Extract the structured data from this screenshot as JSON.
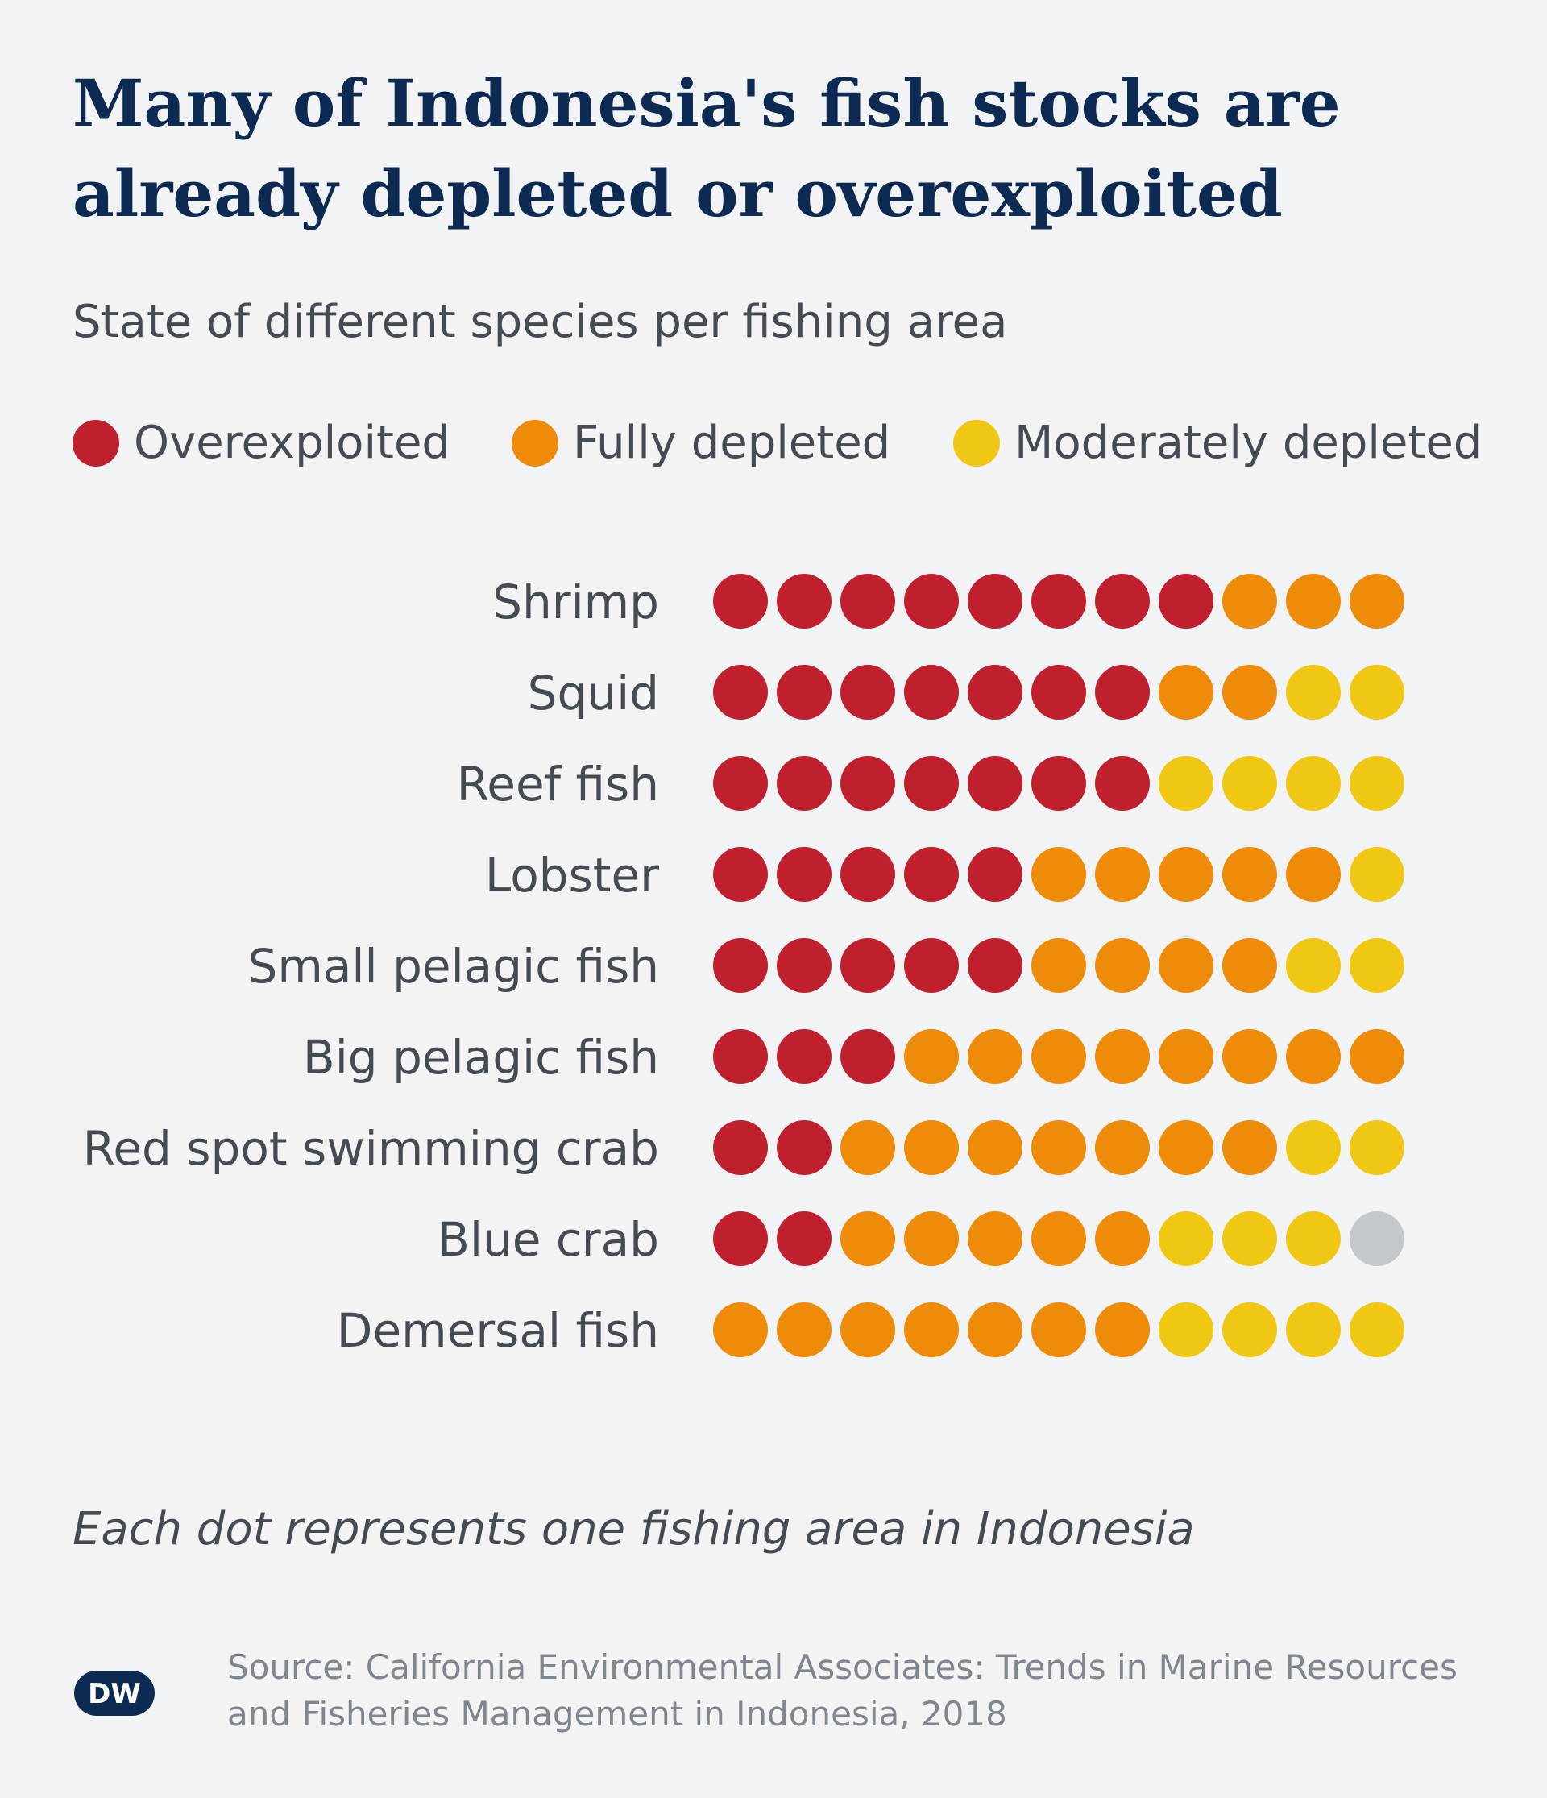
{
  "header": {
    "title": "Many of Indonesia's fish stocks are already depleted or overexploited",
    "subtitle": "State of different species per fishing area"
  },
  "legend": [
    {
      "label": "Overexploited",
      "color": "#c0202e"
    },
    {
      "label": "Fully depleted",
      "color": "#ee8c0a"
    },
    {
      "label": "Moderately depleted",
      "color": "#f0c814"
    }
  ],
  "colors": {
    "overexploited": "#c0202e",
    "fully": "#ee8c0a",
    "moderate": "#f0c814",
    "other": "#c3c8cd",
    "title": "#0c2a52",
    "text": "#454b52",
    "muted": "#7f868d",
    "background": "#f1f3f5"
  },
  "chart_data": {
    "type": "dot-matrix",
    "title": "Many of Indonesia's fish stocks are already depleted or overexploited",
    "subtitle": "State of different species per fishing area",
    "categories": [
      "Shrimp",
      "Squid",
      "Reef fish",
      "Lobster",
      "Small pelagic fish",
      "Big pelagic fish",
      "Red spot swimming crab",
      "Blue crab",
      "Demersal fish"
    ],
    "series": [
      {
        "name": "Overexploited",
        "key": "overexploited",
        "values": [
          8,
          7,
          7,
          5,
          5,
          3,
          2,
          2,
          0
        ]
      },
      {
        "name": "Fully depleted",
        "key": "fully",
        "values": [
          3,
          2,
          0,
          5,
          4,
          8,
          7,
          5,
          7
        ]
      },
      {
        "name": "Moderately depleted",
        "key": "moderate",
        "values": [
          0,
          2,
          4,
          1,
          2,
          0,
          2,
          3,
          4
        ]
      },
      {
        "key": "other",
        "values": [
          0,
          0,
          0,
          0,
          0,
          0,
          0,
          1,
          0
        ]
      }
    ],
    "units_per_dot": 1,
    "legend_position": "top-left"
  },
  "footer": {
    "note": "Each dot represents one fishing area in Indonesia",
    "source": "Source: California Environmental Associates: Trends in Marine Resources and Fisheries Management in Indonesia, 2018",
    "logo": "DW"
  }
}
